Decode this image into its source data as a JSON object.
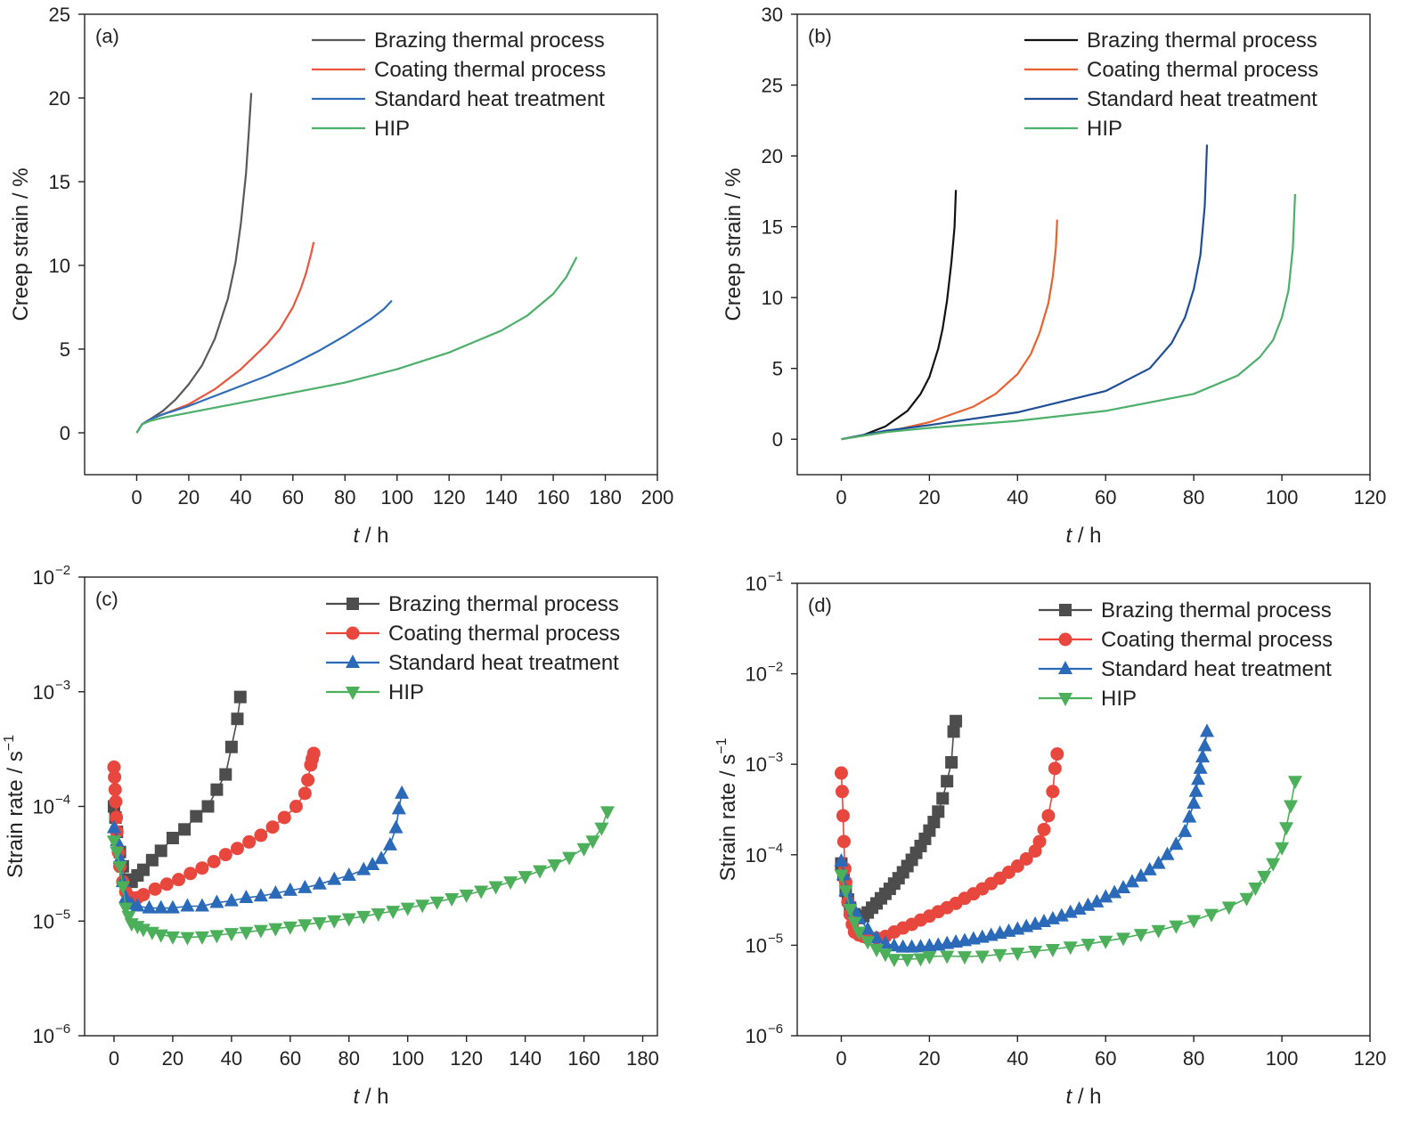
{
  "chart_data": [
    {
      "panel": "(a)",
      "type": "line",
      "xlabel_italic": "t",
      "xlabel_unit": " / h",
      "ylabel": "Creep strain / %",
      "xlim": [
        -20,
        200
      ],
      "ylim": [
        -2.5,
        25
      ],
      "xticks": [
        0,
        20,
        40,
        60,
        80,
        100,
        120,
        140,
        160,
        180,
        200
      ],
      "yticks": [
        0,
        5,
        10,
        15,
        20,
        25
      ],
      "legend_position": "top-right",
      "series": [
        {
          "name": "Brazing thermal process",
          "color": "#595959",
          "x": [
            0,
            2,
            5,
            10,
            15,
            20,
            25,
            30,
            35,
            38,
            40,
            42,
            43,
            44
          ],
          "y": [
            0,
            0.5,
            0.8,
            1.3,
            2.0,
            2.9,
            4.0,
            5.6,
            8.0,
            10.2,
            12.5,
            15.5,
            17.8,
            20.3
          ]
        },
        {
          "name": "Coating thermal process",
          "color": "#e8573e",
          "x": [
            0,
            2,
            5,
            10,
            20,
            30,
            40,
            50,
            55,
            60,
            63,
            65,
            67,
            68
          ],
          "y": [
            0,
            0.5,
            0.8,
            1.1,
            1.7,
            2.6,
            3.8,
            5.3,
            6.2,
            7.5,
            8.6,
            9.5,
            10.7,
            11.4
          ]
        },
        {
          "name": "Standard heat treatment",
          "color": "#2f6db5",
          "x": [
            0,
            2,
            5,
            10,
            20,
            30,
            40,
            50,
            60,
            70,
            80,
            90,
            95,
            98
          ],
          "y": [
            0,
            0.5,
            0.8,
            1.1,
            1.6,
            2.2,
            2.8,
            3.4,
            4.1,
            4.9,
            5.8,
            6.8,
            7.4,
            7.9
          ]
        },
        {
          "name": "HIP",
          "color": "#4caf6a",
          "x": [
            0,
            2,
            5,
            10,
            20,
            40,
            60,
            80,
            100,
            120,
            140,
            150,
            160,
            165,
            169
          ],
          "y": [
            0,
            0.5,
            0.7,
            0.9,
            1.2,
            1.8,
            2.4,
            3.0,
            3.8,
            4.8,
            6.1,
            7.0,
            8.3,
            9.3,
            10.5
          ]
        }
      ]
    },
    {
      "panel": "(b)",
      "type": "line",
      "xlabel_italic": "t",
      "xlabel_unit": " / h",
      "ylabel": "Creep strain / %",
      "xlim": [
        -10,
        120
      ],
      "ylim": [
        -2.5,
        30
      ],
      "xticks": [
        0,
        20,
        40,
        60,
        80,
        100,
        120
      ],
      "yticks": [
        0,
        5,
        10,
        15,
        20,
        25,
        30
      ],
      "legend_position": "top-right",
      "series": [
        {
          "name": "Brazing thermal process",
          "color": "#111111",
          "x": [
            0,
            5,
            10,
            15,
            18,
            20,
            22,
            23,
            24,
            25,
            25.7,
            26
          ],
          "y": [
            0,
            0.3,
            0.9,
            2.0,
            3.2,
            4.4,
            6.4,
            7.8,
            9.8,
            12.5,
            15.0,
            17.6
          ]
        },
        {
          "name": "Coating thermal process",
          "color": "#e8612e",
          "x": [
            0,
            10,
            20,
            30,
            35,
            40,
            43,
            45,
            47,
            48,
            48.7,
            49
          ],
          "y": [
            0,
            0.5,
            1.2,
            2.3,
            3.2,
            4.6,
            6.0,
            7.5,
            9.6,
            11.5,
            13.5,
            15.5
          ]
        },
        {
          "name": "Standard heat treatment",
          "color": "#1f4e96",
          "x": [
            0,
            10,
            20,
            40,
            60,
            70,
            75,
            78,
            80,
            81.5,
            82.5,
            83
          ],
          "y": [
            0,
            0.6,
            1.0,
            1.9,
            3.4,
            5.0,
            6.8,
            8.6,
            10.6,
            13.0,
            16.5,
            20.8
          ]
        },
        {
          "name": "HIP",
          "color": "#4caf6a",
          "x": [
            0,
            10,
            20,
            40,
            60,
            80,
            90,
            95,
            98,
            100,
            101.5,
            102.5,
            103
          ],
          "y": [
            0,
            0.5,
            0.8,
            1.3,
            2.0,
            3.2,
            4.5,
            5.8,
            7.0,
            8.6,
            10.5,
            13.5,
            17.3
          ]
        }
      ]
    },
    {
      "panel": "(c)",
      "type": "line",
      "yscale": "log",
      "xlabel_italic": "t",
      "xlabel_unit": " / h",
      "ylabel": "Strain rate / s",
      "ylabel_sup": "−1",
      "xlim": [
        -10,
        185
      ],
      "ylim_exp": [
        -6,
        -2
      ],
      "xticks": [
        0,
        20,
        40,
        60,
        80,
        100,
        120,
        140,
        160,
        180
      ],
      "yticks_exp": [
        -6,
        -5,
        -4,
        -3,
        -2
      ],
      "ytick_base": "10",
      "legend_position": "top-right",
      "series": [
        {
          "name": "Brazing thermal process",
          "color": "#4d4d4d",
          "marker": "square",
          "x": [
            0,
            0.5,
            1,
            2,
            3,
            4,
            6,
            8,
            10,
            13,
            16,
            20,
            24,
            28,
            32,
            35,
            38,
            40,
            42,
            43
          ],
          "y": [
            0.0001,
            8e-05,
            6e-05,
            4e-05,
            3e-05,
            2.3e-05,
            2.2e-05,
            2.5e-05,
            2.8e-05,
            3.4e-05,
            4.1e-05,
            5.3e-05,
            6.3e-05,
            8.2e-05,
            0.0001,
            0.00014,
            0.00019,
            0.00033,
            0.00058,
            0.0009
          ]
        },
        {
          "name": "Coating thermal process",
          "color": "#e8473e",
          "marker": "circle",
          "x": [
            0,
            0.2,
            0.4,
            0.6,
            0.8,
            1,
            1.5,
            2,
            3,
            4,
            6,
            8,
            10,
            14,
            18,
            22,
            26,
            30,
            34,
            38,
            42,
            46,
            50,
            54,
            58,
            62,
            65,
            66,
            67,
            67.5,
            68
          ],
          "y": [
            0.00022,
            0.00018,
            0.00014,
            0.00011,
            8e-05,
            6e-05,
            4e-05,
            3e-05,
            2.2e-05,
            1.8e-05,
            1.6e-05,
            1.6e-05,
            1.7e-05,
            1.9e-05,
            2.1e-05,
            2.3e-05,
            2.6e-05,
            2.9e-05,
            3.3e-05,
            3.8e-05,
            4.3e-05,
            4.9e-05,
            5.6e-05,
            6.6e-05,
            8e-05,
            0.0001,
            0.00013,
            0.00017,
            0.00023,
            0.00026,
            0.00029
          ]
        },
        {
          "name": "Standard heat treatment",
          "color": "#2a6ab8",
          "marker": "triangle-up",
          "x": [
            0,
            1,
            2,
            3,
            4,
            6,
            8,
            12,
            16,
            20,
            25,
            30,
            35,
            40,
            45,
            50,
            55,
            60,
            65,
            70,
            75,
            80,
            85,
            88,
            91,
            94,
            96,
            97,
            98
          ],
          "y": [
            6.5e-05,
            5e-05,
            3.5e-05,
            2.2e-05,
            1.6e-05,
            1.4e-05,
            1.35e-05,
            1.3e-05,
            1.3e-05,
            1.3e-05,
            1.35e-05,
            1.35e-05,
            1.45e-05,
            1.5e-05,
            1.6e-05,
            1.65e-05,
            1.75e-05,
            1.85e-05,
            1.95e-05,
            2.1e-05,
            2.3e-05,
            2.5e-05,
            2.8e-05,
            3.1e-05,
            3.5e-05,
            4.6e-05,
            6.5e-05,
            9.5e-05,
            0.00013
          ]
        },
        {
          "name": "HIP",
          "color": "#4caf5a",
          "marker": "triangle-down",
          "x": [
            0,
            1,
            2,
            3,
            4,
            5,
            6,
            8,
            10,
            13,
            16,
            20,
            25,
            30,
            35,
            40,
            45,
            50,
            55,
            60,
            65,
            70,
            75,
            80,
            85,
            90,
            95,
            100,
            105,
            110,
            115,
            120,
            125,
            130,
            135,
            140,
            145,
            150,
            155,
            160,
            163,
            166,
            168
          ],
          "y": [
            5e-05,
            4e-05,
            3e-05,
            2e-05,
            1.3e-05,
            1.1e-05,
            9.5e-06,
            9e-06,
            8.5e-06,
            8e-06,
            7.6e-06,
            7.3e-06,
            7.2e-06,
            7.3e-06,
            7.5e-06,
            7.8e-06,
            8e-06,
            8.3e-06,
            8.6e-06,
            8.9e-06,
            9.3e-06,
            9.7e-06,
            1.01e-05,
            1.05e-05,
            1.1e-05,
            1.16e-05,
            1.22e-05,
            1.3e-05,
            1.38e-05,
            1.47e-05,
            1.57e-05,
            1.69e-05,
            1.83e-05,
            2e-05,
            2.2e-05,
            2.45e-05,
            2.75e-05,
            3.1e-05,
            3.6e-05,
            4.3e-05,
            5e-05,
            6.5e-05,
            9e-05
          ]
        }
      ]
    },
    {
      "panel": "(d)",
      "type": "line",
      "yscale": "log",
      "xlabel_italic": "t",
      "xlabel_unit": " / h",
      "ylabel": "Strain rate / s",
      "ylabel_sup": "−1",
      "xlim": [
        -10,
        120
      ],
      "ylim_exp": [
        -6,
        -1
      ],
      "xticks": [
        0,
        20,
        40,
        60,
        80,
        100,
        120
      ],
      "yticks_exp": [
        -6,
        -5,
        -4,
        -3,
        -2,
        -1
      ],
      "ytick_base": "10",
      "legend_position": "top-right",
      "series": [
        {
          "name": "Brazing thermal process",
          "color": "#4d4d4d",
          "marker": "square",
          "x": [
            0,
            0.5,
            1,
            1.5,
            2,
            3,
            4,
            5,
            6,
            7,
            8,
            9,
            10,
            11,
            12,
            13,
            14,
            15,
            16,
            17,
            18,
            19,
            20,
            21,
            22,
            23,
            24,
            25,
            25.5,
            26
          ],
          "y": [
            8e-05,
            6e-05,
            4e-05,
            3.2e-05,
            2.6e-05,
            2.2e-05,
            2e-05,
            2.1e-05,
            2.3e-05,
            2.6e-05,
            2.9e-05,
            3.3e-05,
            3.7e-05,
            4.2e-05,
            4.8e-05,
            5.5e-05,
            6.4e-05,
            7.5e-05,
            8.8e-05,
            0.000105,
            0.000125,
            0.00015,
            0.000185,
            0.00023,
            0.0003,
            0.00042,
            0.00065,
            0.00105,
            0.0023,
            0.003
          ]
        },
        {
          "name": "Coating thermal process",
          "color": "#e8473e",
          "marker": "circle",
          "x": [
            0,
            0.2,
            0.4,
            0.6,
            0.8,
            1,
            1.5,
            2,
            2.5,
            3,
            4,
            5,
            6,
            8,
            10,
            12,
            14,
            16,
            18,
            20,
            22,
            24,
            26,
            28,
            30,
            32,
            34,
            36,
            38,
            40,
            42,
            44,
            45,
            46,
            47,
            48,
            48.5,
            49
          ],
          "y": [
            0.0008,
            0.0005,
            0.00027,
            0.00014,
            7e-05,
            5e-05,
            3e-05,
            2.2e-05,
            1.7e-05,
            1.4e-05,
            1.3e-05,
            1.25e-05,
            1.2e-05,
            1.2e-05,
            1.25e-05,
            1.4e-05,
            1.55e-05,
            1.7e-05,
            1.9e-05,
            2.1e-05,
            2.35e-05,
            2.6e-05,
            2.9e-05,
            3.3e-05,
            3.7e-05,
            4.2e-05,
            4.8e-05,
            5.5e-05,
            6.4e-05,
            7.5e-05,
            9e-05,
            0.00011,
            0.00014,
            0.00019,
            0.00027,
            0.0005,
            0.0009,
            0.0013
          ]
        },
        {
          "name": "Standard heat treatment",
          "color": "#2a6ab8",
          "marker": "triangle-up",
          "x": [
            0,
            0.5,
            1,
            2,
            3,
            4,
            6,
            8,
            10,
            12,
            14,
            16,
            18,
            20,
            22,
            24,
            26,
            28,
            30,
            32,
            34,
            36,
            38,
            40,
            42,
            44,
            46,
            48,
            50,
            52,
            54,
            56,
            58,
            60,
            62,
            64,
            66,
            68,
            70,
            72,
            74,
            76,
            78,
            79,
            80,
            80.5,
            81,
            81.5,
            82,
            82.5,
            83
          ],
          "y": [
            8.5e-05,
            6e-05,
            4e-05,
            3e-05,
            2.4e-05,
            2e-05,
            1.5e-05,
            1.2e-05,
            1.05e-05,
            9.8e-06,
            9.5e-06,
            9.5e-06,
            9.6e-06,
            9.8e-06,
            1e-05,
            1.04e-05,
            1.08e-05,
            1.12e-05,
            1.17e-05,
            1.22e-05,
            1.28e-05,
            1.35e-05,
            1.42e-05,
            1.5e-05,
            1.6e-05,
            1.7e-05,
            1.82e-05,
            1.95e-05,
            2.1e-05,
            2.3e-05,
            2.5e-05,
            2.75e-05,
            3e-05,
            3.4e-05,
            3.8e-05,
            4.3e-05,
            5e-05,
            5.8e-05,
            6.8e-05,
            8e-05,
            0.0001,
            0.00013,
            0.00018,
            0.00026,
            0.00037,
            0.0005,
            0.00068,
            0.0009,
            0.0012,
            0.0016,
            0.0023
          ]
        },
        {
          "name": "HIP",
          "color": "#4caf5a",
          "marker": "triangle-down",
          "x": [
            0,
            1,
            2,
            3,
            4,
            6,
            8,
            10,
            12,
            15,
            18,
            20,
            24,
            28,
            32,
            36,
            40,
            44,
            48,
            52,
            56,
            60,
            64,
            68,
            72,
            76,
            80,
            84,
            88,
            92,
            94,
            96,
            98,
            100,
            101,
            102,
            103
          ],
          "y": [
            6e-05,
            4e-05,
            2.5e-05,
            1.8e-05,
            1.4e-05,
            1.1e-05,
            9e-06,
            8e-06,
            7e-06,
            7e-06,
            7.1e-06,
            7.5e-06,
            7.6e-06,
            7.5e-06,
            7.6e-06,
            7.9e-06,
            8.2e-06,
            8.6e-06,
            9e-06,
            9.6e-06,
            1.03e-05,
            1.11e-05,
            1.2e-05,
            1.32e-05,
            1.46e-05,
            1.64e-05,
            1.88e-05,
            2.2e-05,
            2.65e-05,
            3.3e-05,
            4.3e-05,
            5.8e-05,
            8e-05,
            0.00012,
            0.0002,
            0.00035,
            0.00065
          ]
        }
      ]
    }
  ]
}
